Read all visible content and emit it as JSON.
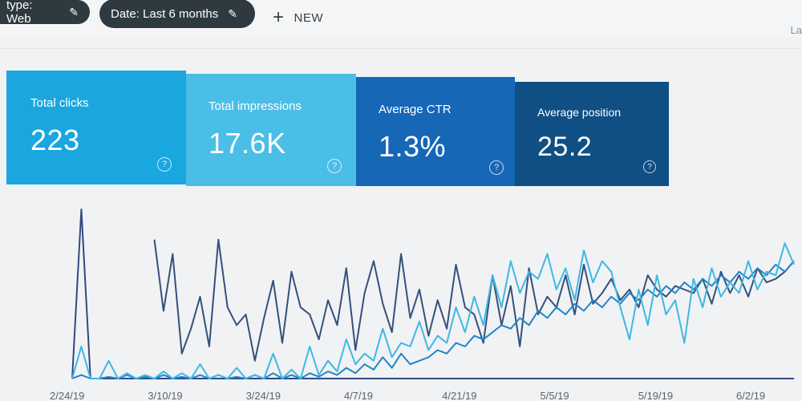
{
  "filters": {
    "type_chip": "type: Web",
    "date_chip": "Date: Last 6 months",
    "new_button": "NEW",
    "corner_text": "La"
  },
  "cards": {
    "clicks": {
      "label": "Total clicks",
      "value": "223",
      "color": "#1aa6df"
    },
    "impressions": {
      "label": "Total impressions",
      "value": "17.6K",
      "color": "#4bbee8"
    },
    "ctr": {
      "label": "Average CTR",
      "value": "1.3%",
      "color": "#1667b6"
    },
    "position": {
      "label": "Average position",
      "value": "25.2",
      "color": "#0f4f84"
    }
  },
  "chart_data": {
    "type": "line",
    "x_tick_labels": [
      "2/24/19",
      "3/10/19",
      "3/24/19",
      "4/7/19",
      "4/21/19",
      "5/5/19",
      "5/19/19",
      "6/2/19"
    ],
    "ylim": [
      0,
      100
    ],
    "grid": false,
    "series": [
      {
        "color": "#2f4a7f",
        "values": [
          0,
          95,
          0,
          0,
          0,
          0,
          0,
          0,
          0,
          0,
          0,
          0,
          0,
          0,
          0,
          0,
          0,
          0,
          0,
          0,
          0,
          0,
          0,
          0,
          0,
          0,
          0,
          0,
          0,
          0,
          0,
          0,
          0,
          0,
          0,
          0,
          0,
          0,
          0,
          0,
          0,
          0,
          0,
          0,
          0,
          0,
          0,
          0,
          0,
          0,
          0,
          0,
          0,
          0,
          0,
          0,
          0,
          0,
          0,
          0,
          0,
          0,
          0,
          0,
          0,
          0,
          0,
          0,
          0,
          0,
          0,
          0,
          0,
          0,
          0,
          0,
          0,
          0,
          0,
          0
        ]
      },
      {
        "color": "#33507d",
        "values": [
          null,
          null,
          null,
          null,
          null,
          null,
          null,
          null,
          null,
          78,
          38,
          70,
          14,
          28,
          46,
          18,
          78,
          40,
          30,
          36,
          10,
          34,
          55,
          20,
          60,
          40,
          36,
          22,
          44,
          30,
          62,
          16,
          48,
          66,
          42,
          26,
          70,
          34,
          50,
          24,
          44,
          28,
          64,
          40,
          36,
          20,
          58,
          30,
          52,
          18,
          62,
          36,
          46,
          40,
          58,
          36,
          64,
          42,
          48,
          56,
          44,
          50,
          40,
          58,
          50,
          46,
          52,
          50,
          48,
          56,
          42,
          60,
          48,
          58,
          46,
          62,
          54,
          56,
          60,
          66
        ]
      },
      {
        "color": "#1f86c8",
        "values": [
          0,
          2,
          0,
          0,
          1,
          0,
          2,
          0,
          1,
          0,
          2,
          0,
          1,
          0,
          2,
          0,
          2,
          0,
          1,
          0,
          2,
          0,
          3,
          0,
          2,
          0,
          3,
          1,
          4,
          2,
          6,
          3,
          8,
          5,
          12,
          6,
          14,
          8,
          10,
          12,
          16,
          14,
          20,
          18,
          24,
          22,
          26,
          30,
          28,
          34,
          30,
          38,
          34,
          40,
          36,
          42,
          38,
          44,
          40,
          46,
          42,
          48,
          44,
          50,
          46,
          52,
          48,
          54,
          50,
          56,
          52,
          58,
          54,
          60,
          56,
          62,
          58,
          64,
          60,
          66
        ]
      },
      {
        "color": "#3db8e6",
        "values": [
          0,
          18,
          0,
          0,
          10,
          0,
          3,
          0,
          2,
          0,
          4,
          0,
          3,
          0,
          8,
          0,
          2,
          0,
          6,
          0,
          2,
          0,
          14,
          0,
          5,
          0,
          18,
          2,
          10,
          4,
          22,
          8,
          14,
          10,
          28,
          12,
          20,
          18,
          32,
          16,
          24,
          20,
          40,
          26,
          46,
          30,
          58,
          40,
          66,
          48,
          60,
          56,
          70,
          50,
          62,
          44,
          72,
          54,
          66,
          60,
          40,
          22,
          50,
          30,
          58,
          36,
          44,
          20,
          56,
          40,
          62,
          46,
          54,
          48,
          66,
          50,
          60,
          58,
          76,
          64
        ]
      }
    ]
  }
}
